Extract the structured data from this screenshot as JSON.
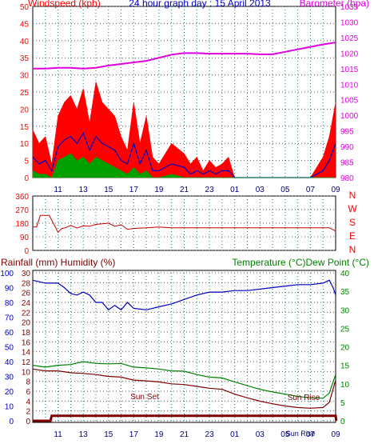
{
  "chart_data": [
    {
      "type": "line",
      "title": "24 hour graph day : 15 April 2013",
      "ylabel_left": "Windspeed (kph)",
      "ylabel_right": "Barometer (hpa)",
      "x_ticks": [
        "11",
        "13",
        "15",
        "17",
        "19",
        "21",
        "23",
        "01",
        "03",
        "05",
        "07",
        "09"
      ],
      "y_left_ticks": [
        "0",
        "5",
        "10",
        "15",
        "20",
        "25",
        "30",
        "35",
        "40",
        "45",
        "50"
      ],
      "y_right_ticks": [
        "980",
        "985",
        "990",
        "995",
        "1000",
        "1005",
        "1010",
        "1015",
        "1020",
        "1025",
        "1030",
        "1035"
      ],
      "ylim_left": [
        0,
        50
      ],
      "ylim_right": [
        980,
        1035
      ],
      "grid": true,
      "series": [
        {
          "name": "Barometer (hpa)",
          "color": "#e000e0",
          "x": [
            9,
            10,
            11,
            12,
            13,
            14,
            15,
            16,
            17,
            18,
            19,
            20,
            21,
            22,
            23,
            24,
            25,
            26,
            27,
            28,
            29,
            30,
            31,
            32,
            33
          ],
          "values": [
            1015,
            1015,
            1015.3,
            1015.3,
            1015,
            1015.3,
            1016,
            1016.5,
            1017,
            1017.5,
            1018.5,
            1019.5,
            1020,
            1020,
            1019.8,
            1019.8,
            1019.8,
            1019.8,
            1019.6,
            1019.6,
            1020.4,
            1021.2,
            1022,
            1022.8,
            1023.4
          ]
        },
        {
          "name": "Wind gust",
          "color": "#ff0000",
          "x": [
            9,
            9.5,
            10,
            10.5,
            11,
            11.5,
            12,
            12.5,
            13,
            13.5,
            14,
            14.5,
            15,
            15.5,
            16,
            16.5,
            17,
            17.5,
            18,
            18.5,
            19,
            20,
            21,
            21.5,
            22,
            22.5,
            23,
            23.5,
            24,
            24.5,
            25,
            26,
            27,
            28,
            29,
            30,
            31,
            32,
            32.5,
            33
          ],
          "values": [
            14,
            10,
            12,
            4,
            18,
            22,
            24,
            20,
            26,
            16,
            28,
            22,
            20,
            18,
            12,
            8,
            22,
            10,
            18,
            6,
            4,
            10,
            7,
            4,
            6,
            2,
            5,
            3,
            4,
            6,
            0,
            0,
            0,
            0,
            0,
            0,
            0,
            6,
            12,
            22
          ]
        },
        {
          "name": "Wind average",
          "color": "#0000c0",
          "x": [
            9,
            9.5,
            10,
            10.5,
            11,
            11.5,
            12,
            12.5,
            13,
            13.5,
            14,
            14.5,
            15,
            15.5,
            16,
            16.5,
            17,
            17.5,
            18,
            18.5,
            19,
            20,
            21,
            21.5,
            22,
            22.5,
            23,
            23.5,
            24,
            24.5,
            25,
            26,
            27,
            28,
            29,
            30,
            31,
            32,
            32.5,
            33
          ],
          "values": [
            6,
            4,
            5,
            2,
            9,
            11,
            12,
            10,
            13,
            8,
            12,
            10,
            9,
            8,
            5,
            4,
            10,
            4,
            8,
            2,
            2,
            4,
            3,
            1,
            2,
            1,
            2,
            1,
            2,
            2,
            0,
            0,
            0,
            0,
            0,
            0,
            0,
            2,
            5,
            10
          ]
        },
        {
          "name": "Wind calm",
          "color": "#00a000",
          "x": [
            9,
            9.5,
            10,
            10.5,
            11,
            11.5,
            12,
            12.5,
            13,
            13.5,
            14,
            14.5,
            15,
            15.5,
            16,
            16.5,
            17,
            17.5,
            18,
            18.5,
            19,
            20,
            21,
            22,
            23,
            24,
            25,
            26,
            27,
            28,
            29,
            30,
            31,
            32,
            33
          ],
          "values": [
            2,
            1,
            1,
            0,
            5,
            6,
            7,
            5,
            6,
            4,
            6,
            5,
            4,
            3,
            2,
            1,
            3,
            1,
            2,
            0,
            0,
            1,
            0,
            0,
            0,
            0,
            0,
            0,
            0,
            0,
            0,
            0,
            0,
            0,
            0
          ]
        }
      ]
    },
    {
      "type": "line",
      "ylabel_right": "N W S E N",
      "x_ticks": [
        "11",
        "13",
        "15",
        "17",
        "19",
        "21",
        "23",
        "01",
        "03",
        "05",
        "07",
        "09"
      ],
      "y_left_ticks": [
        "0",
        "90",
        "180",
        "270",
        "360"
      ],
      "ylim": [
        0,
        360
      ],
      "right_letters": [
        "N",
        "W",
        "S",
        "E",
        "N"
      ],
      "series": [
        {
          "name": "Wind direction",
          "color": "#c00000",
          "x": [
            9,
            9.3,
            9.6,
            10,
            10.3,
            10.6,
            11,
            11.3,
            11.6,
            12,
            12.5,
            13,
            13.5,
            14,
            14.5,
            15,
            15.5,
            16,
            16.5,
            17,
            18,
            19,
            20,
            21,
            22,
            23,
            24,
            25,
            26,
            27,
            28,
            29,
            30,
            31,
            32,
            32.5,
            33
          ],
          "values": [
            155,
            155,
            232,
            232,
            232,
            185,
            120,
            145,
            150,
            165,
            148,
            162,
            160,
            172,
            176,
            180,
            160,
            170,
            140,
            145,
            150,
            155,
            150,
            150,
            150,
            150,
            150,
            150,
            150,
            150,
            150,
            150,
            150,
            150,
            150,
            150,
            128
          ]
        }
      ]
    },
    {
      "type": "line",
      "ylabel_left": "Rainfall (mm)  Humidity (%)",
      "ylabel_right": "Temperature (°C)Dew Point (°C)",
      "x_ticks": [
        "11",
        "13",
        "15",
        "17",
        "19",
        "21",
        "23",
        "01",
        "03",
        "05",
        "07",
        "09"
      ],
      "hum_ticks": [
        "0",
        "10",
        "20",
        "30",
        "40",
        "50",
        "60",
        "70",
        "80",
        "90",
        "100"
      ],
      "rain_ticks": [
        "0",
        "2",
        "4",
        "6",
        "8",
        "10",
        "12",
        "14",
        "16",
        "18",
        "20",
        "22",
        "24",
        "26",
        "28",
        "30"
      ],
      "temp_ticks": [
        "0",
        "5",
        "10",
        "15",
        "20",
        "25",
        "30",
        "35",
        "40"
      ],
      "annotations": [
        "Sun Set",
        "Sun Rise",
        "Sun Rise"
      ],
      "series": [
        {
          "name": "Humidity (%)",
          "color": "#0000c0",
          "x": [
            9,
            10,
            11,
            11.5,
            12,
            12.5,
            13,
            13.5,
            14,
            14.5,
            15,
            15.5,
            16,
            16.5,
            17,
            18,
            19,
            20,
            21,
            22,
            23,
            24,
            25,
            26,
            27,
            28,
            29,
            30,
            31,
            32,
            32.5,
            32.8,
            33
          ],
          "values": [
            95,
            93,
            93,
            90,
            86,
            85,
            87,
            85,
            80,
            80,
            75,
            78,
            75,
            80,
            76,
            75,
            77,
            79,
            82,
            85,
            87,
            87,
            88,
            88,
            89,
            90,
            91,
            92,
            92,
            93,
            95,
            90,
            85
          ]
        },
        {
          "name": "Temperature (°C)",
          "color": "#008000",
          "x": [
            9,
            10,
            11,
            12,
            13,
            14,
            15,
            16,
            17,
            18,
            19,
            20,
            21,
            22,
            23,
            24,
            25,
            26,
            27,
            28,
            29,
            30,
            31,
            32,
            32.5,
            33
          ],
          "values": [
            15,
            14.5,
            15,
            15.2,
            16,
            15.5,
            15.4,
            15.5,
            14.5,
            14.3,
            14,
            13.5,
            13.4,
            12.5,
            11.8,
            11.6,
            10.5,
            9.5,
            8.5,
            7.8,
            7.2,
            6.6,
            6.2,
            6.1,
            7.5,
            12.5
          ]
        },
        {
          "name": "Dew Point (°C)",
          "color": "#800000",
          "x": [
            9,
            10,
            11,
            12,
            13,
            14,
            15,
            16,
            17,
            18,
            19,
            20,
            21,
            22,
            23,
            24,
            25,
            26,
            27,
            28,
            29,
            30,
            31,
            32,
            32.5,
            33
          ],
          "values": [
            14,
            13.5,
            13.5,
            13,
            12.8,
            12.5,
            12,
            11.8,
            11,
            10.8,
            10.5,
            10,
            9.8,
            9.3,
            8.8,
            8.5,
            7.2,
            6.2,
            5.3,
            4.6,
            4,
            3.6,
            3.4,
            3.6,
            5,
            11
          ]
        },
        {
          "name": "Rainfall (mm)",
          "color": "#800000",
          "x": [
            9,
            10.4,
            10.5,
            33,
            33.05
          ],
          "values": [
            0,
            0,
            1,
            1,
            0
          ]
        }
      ]
    }
  ]
}
